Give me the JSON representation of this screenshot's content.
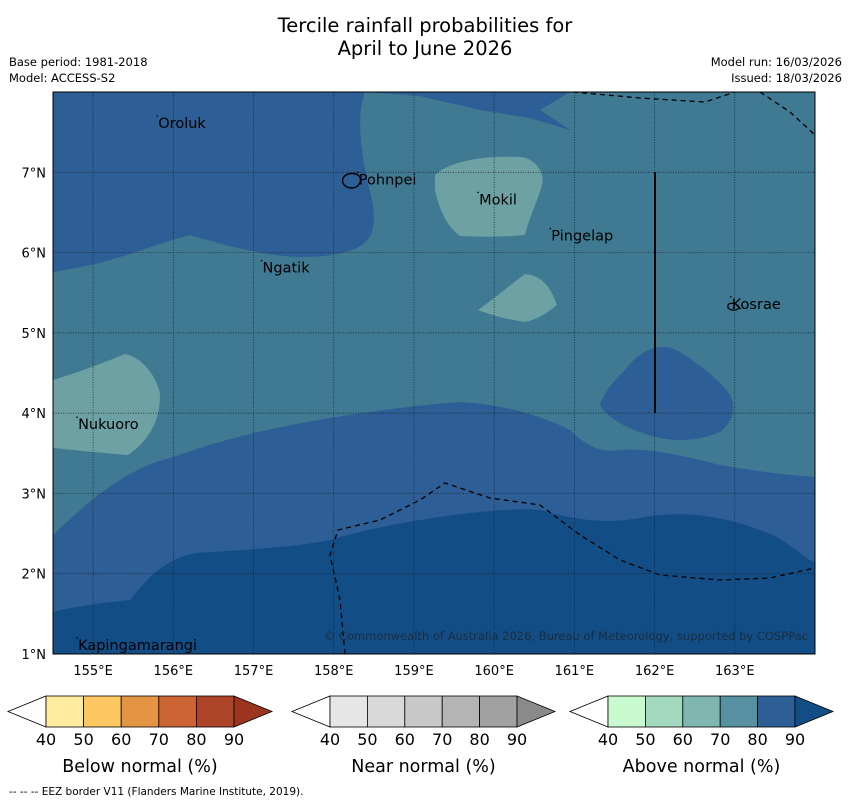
{
  "header": {
    "title_line1": "Tercile rainfall probabilities for",
    "title_line2": "April to June 2026",
    "base_period": "Base period: 1981-2018",
    "model": "Model: ACCESS-S2",
    "model_run": "Model run: 16/03/2026",
    "issued": "Issued: 18/03/2026"
  },
  "map": {
    "lon_labels": [
      "155°E",
      "156°E",
      "157°E",
      "158°E",
      "159°E",
      "160°E",
      "161°E",
      "162°E",
      "163°E"
    ],
    "lat_labels": [
      "7°N",
      "6°N",
      "5°N",
      "4°N",
      "3°N",
      "2°N",
      "1°N"
    ],
    "places": [
      {
        "name": "Oroluk",
        "lon": 155.8,
        "lat": 7.6
      },
      {
        "name": "Pohnpei",
        "lon": 158.3,
        "lat": 6.9
      },
      {
        "name": "Mokil",
        "lon": 159.8,
        "lat": 6.65
      },
      {
        "name": "Pingelap",
        "lon": 160.7,
        "lat": 6.2
      },
      {
        "name": "Ngatik",
        "lon": 157.1,
        "lat": 5.8
      },
      {
        "name": "Kosrae",
        "lon": 162.95,
        "lat": 5.35
      },
      {
        "name": "Nukuoro",
        "lon": 154.8,
        "lat": 3.85
      },
      {
        "name": "Kapingamarangi",
        "lon": 154.8,
        "lat": 1.1
      }
    ],
    "copyright": "© Commonwealth of Australia 2026, Bureau of Meteorology, supported by COSPPac",
    "colors": {
      "ocean_above80": "#2e5e96",
      "above70": "#3f7992",
      "above60": "#6da1a3",
      "above90": "#134d86",
      "grid": "#1a1a1a"
    }
  },
  "colorbars": [
    {
      "name": "below",
      "title": "Below normal (%)",
      "ticks": [
        "40",
        "50",
        "60",
        "70",
        "80",
        "90"
      ],
      "colors": [
        "#ffffff",
        "#ffeb9f",
        "#fdc862",
        "#e39544",
        "#cc6434",
        "#ae4529",
        "#9c3520"
      ]
    },
    {
      "name": "near",
      "title": "Near normal (%)",
      "ticks": [
        "40",
        "50",
        "60",
        "70",
        "80",
        "90"
      ],
      "colors": [
        "#ffffff",
        "#e6e6e6",
        "#d9d9d9",
        "#c8c8c8",
        "#b4b4b4",
        "#a1a1a1",
        "#8a8a8a"
      ]
    },
    {
      "name": "above",
      "title": "Above normal (%)",
      "ticks": [
        "40",
        "50",
        "60",
        "70",
        "80",
        "90"
      ],
      "colors": [
        "#ffffff",
        "#c9f9cf",
        "#a3d9bf",
        "#80b6b0",
        "#5690a1",
        "#2e5e96",
        "#134d86"
      ]
    }
  ],
  "footnote": "--  --  -- EEZ border V11 (Flanders Marine Institute, 2019)."
}
